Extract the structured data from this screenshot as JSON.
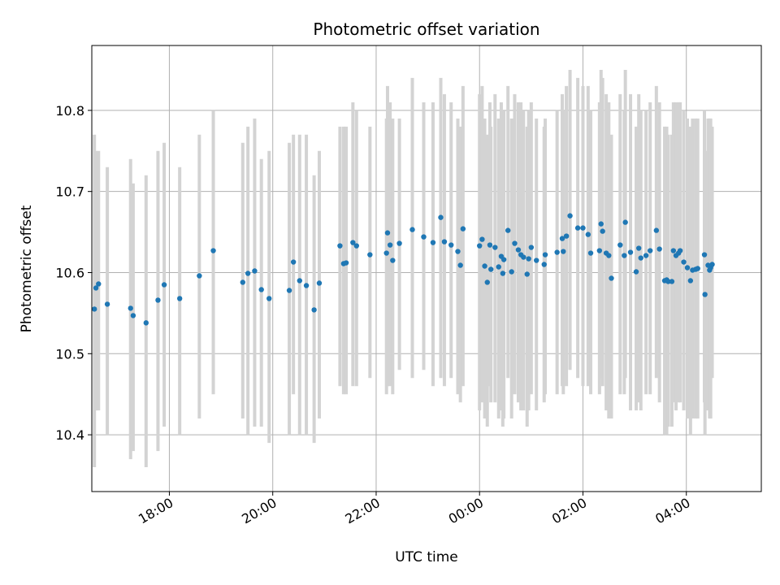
{
  "chart_data": {
    "type": "scatter",
    "title": "Photometric offset variation",
    "xlabel": "UTC time",
    "ylabel": "Photometric offset",
    "x_tick_labels": [
      "18:00",
      "20:00",
      "22:00",
      "00:00",
      "02:00",
      "04:00"
    ],
    "x_tick_hours": [
      18,
      20,
      22,
      24,
      26,
      28
    ],
    "y_tick_labels": [
      "10.4",
      "10.5",
      "10.6",
      "10.7",
      "10.8"
    ],
    "y_ticks": [
      10.4,
      10.5,
      10.6,
      10.7,
      10.8
    ],
    "xlim_hours": [
      16.5,
      29.45
    ],
    "ylim": [
      10.33,
      10.88
    ],
    "grid": true,
    "colors": {
      "point": "#1f77b4",
      "errorbar": "#d3d3d3",
      "grid": "#b0b0b0"
    },
    "series": [
      {
        "points": [
          [
            16.55,
            10.555,
            10.36,
            10.77
          ],
          [
            16.58,
            10.581,
            10.43,
            10.75
          ],
          [
            16.63,
            10.586,
            10.43,
            10.75
          ],
          [
            16.8,
            10.561,
            10.4,
            10.73
          ],
          [
            17.25,
            10.556,
            10.37,
            10.74
          ],
          [
            17.3,
            10.547,
            10.38,
            10.71
          ],
          [
            17.55,
            10.538,
            10.36,
            10.72
          ],
          [
            17.78,
            10.566,
            10.38,
            10.75
          ],
          [
            17.9,
            10.585,
            10.41,
            10.76
          ],
          [
            18.2,
            10.568,
            10.4,
            10.73
          ],
          [
            18.58,
            10.596,
            10.42,
            10.77
          ],
          [
            18.85,
            10.627,
            10.45,
            10.8
          ],
          [
            19.42,
            10.588,
            10.42,
            10.76
          ],
          [
            19.52,
            10.599,
            10.4,
            10.78
          ],
          [
            19.65,
            10.602,
            10.41,
            10.79
          ],
          [
            19.78,
            10.579,
            10.41,
            10.74
          ],
          [
            19.93,
            10.568,
            10.39,
            10.75
          ],
          [
            20.32,
            10.578,
            10.4,
            10.76
          ],
          [
            20.4,
            10.613,
            10.45,
            10.77
          ],
          [
            20.52,
            10.59,
            10.4,
            10.77
          ],
          [
            20.65,
            10.584,
            10.4,
            10.77
          ],
          [
            20.8,
            10.554,
            10.39,
            10.72
          ],
          [
            20.9,
            10.587,
            10.42,
            10.75
          ],
          [
            21.3,
            10.633,
            10.46,
            10.78
          ],
          [
            21.37,
            10.611,
            10.45,
            10.78
          ],
          [
            21.42,
            10.612,
            10.45,
            10.78
          ],
          [
            21.55,
            10.637,
            10.46,
            10.81
          ],
          [
            21.62,
            10.633,
            10.46,
            10.8
          ],
          [
            21.88,
            10.622,
            10.47,
            10.78
          ],
          [
            22.2,
            10.624,
            10.45,
            10.79
          ],
          [
            22.22,
            10.649,
            10.46,
            10.83
          ],
          [
            22.27,
            10.634,
            10.46,
            10.81
          ],
          [
            22.32,
            10.615,
            10.45,
            10.79
          ],
          [
            22.45,
            10.636,
            10.48,
            10.79
          ],
          [
            22.7,
            10.653,
            10.47,
            10.84
          ],
          [
            22.92,
            10.644,
            10.48,
            10.81
          ],
          [
            23.1,
            10.637,
            10.46,
            10.81
          ],
          [
            23.25,
            10.668,
            10.47,
            10.84
          ],
          [
            23.32,
            10.638,
            10.46,
            10.82
          ],
          [
            23.45,
            10.634,
            10.47,
            10.81
          ],
          [
            23.58,
            10.626,
            10.45,
            10.79
          ],
          [
            23.63,
            10.609,
            10.44,
            10.78
          ],
          [
            23.68,
            10.654,
            10.46,
            10.83
          ],
          [
            24.2,
            10.634,
            10.46,
            10.81
          ],
          [
            24.0,
            10.633,
            10.43,
            10.82
          ],
          [
            24.05,
            10.641,
            10.44,
            10.83
          ],
          [
            24.1,
            10.608,
            10.42,
            10.79
          ],
          [
            24.15,
            10.588,
            10.41,
            10.77
          ],
          [
            24.22,
            10.604,
            10.44,
            10.78
          ],
          [
            24.3,
            10.631,
            10.44,
            10.82
          ],
          [
            24.37,
            10.607,
            10.42,
            10.79
          ],
          [
            24.42,
            10.62,
            10.43,
            10.81
          ],
          [
            24.47,
            10.616,
            10.42,
            10.8
          ],
          [
            24.45,
            10.599,
            10.41,
            10.79
          ],
          [
            24.55,
            10.652,
            10.47,
            10.83
          ],
          [
            24.62,
            10.601,
            10.42,
            10.79
          ],
          [
            24.68,
            10.636,
            10.45,
            10.82
          ],
          [
            24.75,
            10.628,
            10.44,
            10.81
          ],
          [
            24.8,
            10.622,
            10.43,
            10.81
          ],
          [
            24.85,
            10.619,
            10.43,
            10.8
          ],
          [
            24.92,
            10.598,
            10.41,
            10.78
          ],
          [
            24.95,
            10.617,
            10.43,
            10.8
          ],
          [
            25.0,
            10.631,
            10.45,
            10.81
          ],
          [
            25.1,
            10.615,
            10.43,
            10.79
          ],
          [
            25.25,
            10.61,
            10.44,
            10.78
          ],
          [
            25.27,
            10.622,
            10.45,
            10.79
          ],
          [
            25.5,
            10.625,
            10.45,
            10.8
          ],
          [
            25.6,
            10.642,
            10.46,
            10.82
          ],
          [
            25.62,
            10.626,
            10.45,
            10.8
          ],
          [
            25.68,
            10.645,
            10.46,
            10.83
          ],
          [
            25.75,
            10.67,
            10.48,
            10.85
          ],
          [
            25.9,
            10.655,
            10.47,
            10.84
          ],
          [
            26.0,
            10.655,
            10.46,
            10.83
          ],
          [
            26.1,
            10.647,
            10.46,
            10.83
          ],
          [
            26.15,
            10.624,
            10.45,
            10.8
          ],
          [
            26.32,
            10.627,
            10.45,
            10.81
          ],
          [
            26.35,
            10.66,
            10.47,
            10.85
          ],
          [
            26.38,
            10.651,
            10.46,
            10.84
          ],
          [
            26.45,
            10.624,
            10.43,
            10.82
          ],
          [
            26.5,
            10.621,
            10.42,
            10.81
          ],
          [
            26.55,
            10.593,
            10.42,
            10.77
          ],
          [
            26.72,
            10.634,
            10.45,
            10.82
          ],
          [
            26.8,
            10.621,
            10.45,
            10.8
          ],
          [
            26.82,
            10.662,
            10.47,
            10.85
          ],
          [
            26.92,
            10.625,
            10.43,
            10.82
          ],
          [
            27.03,
            10.601,
            10.43,
            10.78
          ],
          [
            27.08,
            10.63,
            10.44,
            10.82
          ],
          [
            27.12,
            10.618,
            10.43,
            10.8
          ],
          [
            27.22,
            10.621,
            10.45,
            10.8
          ],
          [
            27.3,
            10.627,
            10.45,
            10.81
          ],
          [
            27.42,
            10.652,
            10.47,
            10.83
          ],
          [
            27.48,
            10.629,
            10.44,
            10.81
          ],
          [
            27.58,
            10.59,
            10.4,
            10.78
          ],
          [
            27.62,
            10.591,
            10.4,
            10.78
          ],
          [
            27.65,
            10.589,
            10.41,
            10.77
          ],
          [
            27.72,
            10.589,
            10.41,
            10.77
          ],
          [
            27.75,
            10.627,
            10.44,
            10.81
          ],
          [
            27.8,
            10.621,
            10.43,
            10.81
          ],
          [
            27.85,
            10.624,
            10.44,
            10.81
          ],
          [
            27.88,
            10.627,
            10.44,
            10.81
          ],
          [
            27.95,
            10.613,
            10.43,
            10.8
          ],
          [
            28.02,
            10.606,
            10.42,
            10.79
          ],
          [
            28.08,
            10.59,
            10.4,
            10.78
          ],
          [
            28.12,
            10.603,
            10.42,
            10.79
          ],
          [
            28.18,
            10.604,
            10.42,
            10.79
          ],
          [
            28.22,
            10.605,
            10.42,
            10.79
          ],
          [
            28.35,
            10.622,
            10.44,
            10.8
          ],
          [
            28.36,
            10.573,
            10.4,
            10.75
          ],
          [
            28.42,
            10.609,
            10.43,
            10.79
          ],
          [
            28.45,
            10.603,
            10.42,
            10.79
          ],
          [
            28.47,
            10.606,
            10.42,
            10.79
          ],
          [
            28.5,
            10.61,
            10.47,
            10.78
          ]
        ]
      }
    ]
  }
}
